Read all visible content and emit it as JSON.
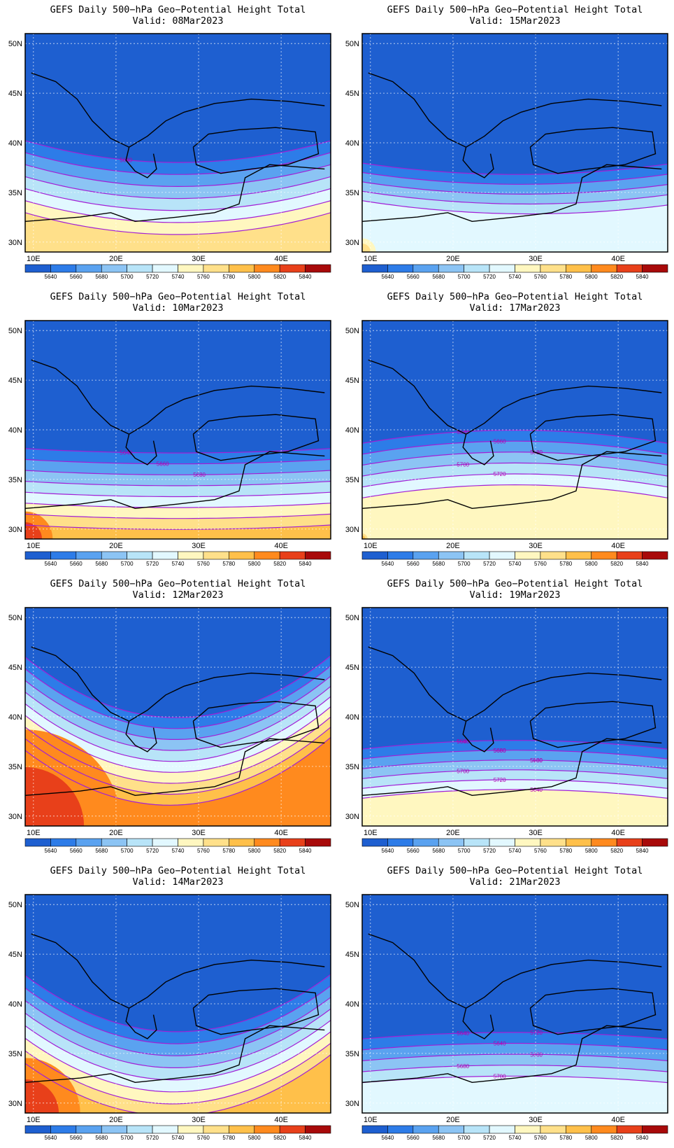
{
  "panels": [
    {
      "title": "GEFS Daily 500−hPa Geo−Potential Height Total",
      "valid": "Valid: 08Mar2023",
      "contour_labels": [
        "5640"
      ]
    },
    {
      "title": "GEFS Daily 500−hPa Geo−Potential Height Total",
      "valid": "Valid: 15Mar2023",
      "contour_labels": []
    },
    {
      "title": "GEFS Daily 500−hPa Geo−Potential Height Total",
      "valid": "Valid: 10Mar2023",
      "contour_labels": [
        "5640",
        "5660",
        "5680"
      ]
    },
    {
      "title": "GEFS Daily 500−hPa Geo−Potential Height Total",
      "valid": "Valid: 17Mar2023",
      "contour_labels": [
        "5640",
        "5660",
        "5680",
        "5700",
        "5720"
      ]
    },
    {
      "title": "GEFS Daily 500−hPa Geo−Potential Height Total",
      "valid": "Valid: 12Mar2023",
      "contour_labels": []
    },
    {
      "title": "GEFS Daily 500−hPa Geo−Potential Height Total",
      "valid": "Valid: 19Mar2023",
      "contour_labels": [
        "5640",
        "5660",
        "5680",
        "5700",
        "5720",
        "5640",
        "5660",
        "5680",
        "5700"
      ]
    },
    {
      "title": "GEFS Daily 500−hPa Geo−Potential Height Total",
      "valid": "Valid: 14Mar2023",
      "contour_labels": []
    },
    {
      "title": "GEFS Daily 500−hPa Geo−Potential Height Total",
      "valid": "Valid: 21Mar2023",
      "contour_labels": [
        "5640",
        "5640",
        "5660",
        "5680",
        "5700",
        "5720"
      ]
    }
  ],
  "axes": {
    "lat_ticks": [
      "50N",
      "45N",
      "40N",
      "35N",
      "30N"
    ],
    "lon_ticks": [
      "10E",
      "20E",
      "30E",
      "40E"
    ],
    "lat_range": [
      29,
      51
    ],
    "lon_range": [
      9,
      46
    ]
  },
  "colorbar": {
    "labels": [
      "5640",
      "5660",
      "5680",
      "5700",
      "5720",
      "5740",
      "5760",
      "5780",
      "5800",
      "5820",
      "5840"
    ],
    "colors": [
      "#1e5fd0",
      "#2d7ce8",
      "#5aa2f0",
      "#8cc4f4",
      "#b8e4f8",
      "#e2f8ff",
      "#fff7c0",
      "#ffe08a",
      "#ffc04a",
      "#ff8a1e",
      "#e8401a",
      "#a80a0a"
    ]
  },
  "colors": {
    "ocean_base": "#2565d2",
    "contour": "#a21fd6",
    "grid": "#ffffff",
    "border": "#000000"
  }
}
